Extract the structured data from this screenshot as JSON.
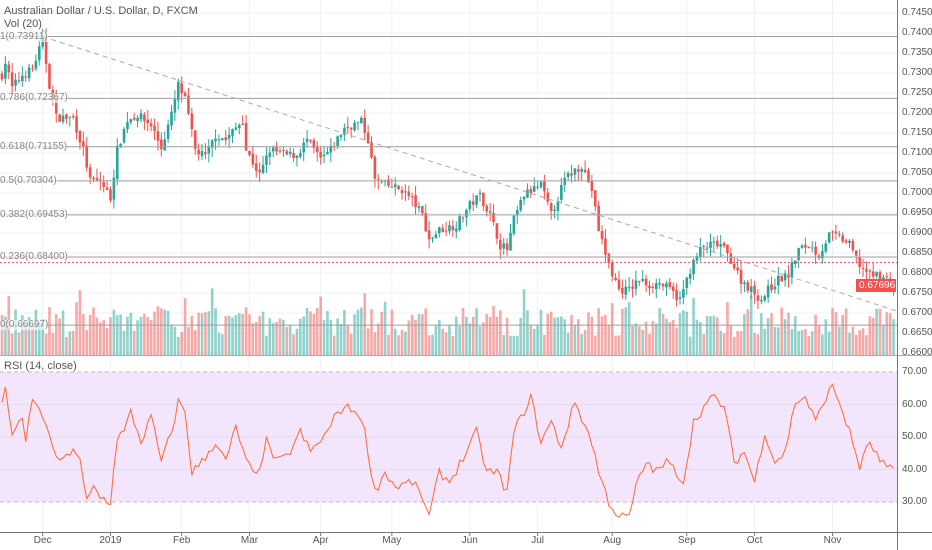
{
  "header": {
    "title": "Australian Dollar / U.S. Dollar, D, FXCM",
    "volume_label": "Vol (20)",
    "rsi_label": "RSI (14, close)"
  },
  "colors": {
    "up": "#26a69a",
    "down": "#ef5350",
    "rsi_line": "#ff7043",
    "rsi_band": "#f3e6fc",
    "fib": "#9e9e9e",
    "grid": "#eef2f6"
  },
  "last_price": "0.67696",
  "fib_levels": [
    {
      "label": "1(0.73911)",
      "price": 0.73911
    },
    {
      "label": "0.786(0.72367)",
      "price": 0.72367
    },
    {
      "label": "0.618(0.71155)",
      "price": 0.71155
    },
    {
      "label": "0.5(0.70304)",
      "price": 0.70304
    },
    {
      "label": "0.382(0.69453)",
      "price": 0.69453
    },
    {
      "label": "0.236(0.68400)",
      "price": 0.684
    },
    {
      "label": "0(0.66697)",
      "price": 0.66697
    }
  ],
  "chart_data": {
    "type": "candlestick",
    "price_axis": {
      "ticks": [
        "0.74500",
        "0.74000",
        "0.73500",
        "0.73000",
        "0.72500",
        "0.72000",
        "0.71500",
        "0.71000",
        "0.70500",
        "0.70000",
        "0.69500",
        "0.69000",
        "0.68500",
        "0.68000",
        "0.67500",
        "0.67000",
        "0.66500",
        "0.66000"
      ],
      "range": [
        0.66,
        0.745
      ]
    },
    "rsi_axis": {
      "ticks": [
        "70.00",
        "60.00",
        "50.00",
        "40.00",
        "30.00"
      ],
      "range": [
        70,
        30
      ]
    },
    "time_axis": [
      "Dec",
      "2019",
      "Feb",
      "Mar",
      "Apr",
      "May",
      "Jun",
      "Jul",
      "Aug",
      "Sep",
      "Oct",
      "Nov"
    ],
    "time_axis_bar_index": [
      12,
      32,
      53,
      73,
      94,
      115,
      138,
      158,
      180,
      202,
      222,
      245
    ],
    "bar_count": 264,
    "close_path": [
      [
        0,
        0.7295
      ],
      [
        1,
        0.7327
      ],
      [
        3,
        0.7263
      ],
      [
        6,
        0.7295
      ],
      [
        9,
        0.731
      ],
      [
        12,
        0.7383
      ],
      [
        14,
        0.727
      ],
      [
        16,
        0.719
      ],
      [
        18,
        0.7188
      ],
      [
        21,
        0.7188
      ],
      [
        24,
        0.7108
      ],
      [
        26,
        0.703
      ],
      [
        29,
        0.703
      ],
      [
        32,
        0.6988
      ],
      [
        34,
        0.7108
      ],
      [
        37,
        0.7183
      ],
      [
        40,
        0.7195
      ],
      [
        44,
        0.717
      ],
      [
        47,
        0.7113
      ],
      [
        50,
        0.7195
      ],
      [
        52,
        0.727
      ],
      [
        54,
        0.7233
      ],
      [
        57,
        0.7108
      ],
      [
        60,
        0.709
      ],
      [
        63,
        0.7145
      ],
      [
        66,
        0.7133
      ],
      [
        71,
        0.7183
      ],
      [
        72,
        0.7108
      ],
      [
        76,
        0.7045
      ],
      [
        79,
        0.7108
      ],
      [
        84,
        0.7095
      ],
      [
        87,
        0.7095
      ],
      [
        90,
        0.7133
      ],
      [
        94,
        0.7083
      ],
      [
        97,
        0.7108
      ],
      [
        101,
        0.7163
      ],
      [
        106,
        0.7178
      ],
      [
        108,
        0.7133
      ],
      [
        110,
        0.7033
      ],
      [
        113,
        0.702
      ],
      [
        118,
        0.7008
      ],
      [
        121,
        0.6983
      ],
      [
        124,
        0.6945
      ],
      [
        126,
        0.6883
      ],
      [
        129,
        0.6908
      ],
      [
        134,
        0.692
      ],
      [
        138,
        0.697
      ],
      [
        141,
        0.6995
      ],
      [
        144,
        0.6945
      ],
      [
        147,
        0.687
      ],
      [
        149,
        0.6858
      ],
      [
        151,
        0.6933
      ],
      [
        154,
        0.6995
      ],
      [
        159,
        0.702
      ],
      [
        162,
        0.6945
      ],
      [
        166,
        0.7033
      ],
      [
        169,
        0.7058
      ],
      [
        171,
        0.707
      ],
      [
        174,
        0.7008
      ],
      [
        176,
        0.6908
      ],
      [
        179,
        0.682
      ],
      [
        182,
        0.6758
      ],
      [
        185,
        0.6758
      ],
      [
        188,
        0.6783
      ],
      [
        191,
        0.677
      ],
      [
        194,
        0.6775
      ],
      [
        197,
        0.6758
      ],
      [
        200,
        0.6733
      ],
      [
        203,
        0.6808
      ],
      [
        206,
        0.6858
      ],
      [
        209,
        0.687
      ],
      [
        212,
        0.687
      ],
      [
        215,
        0.6833
      ],
      [
        218,
        0.6783
      ],
      [
        221,
        0.6758
      ],
      [
        224,
        0.6733
      ],
      [
        226,
        0.6758
      ],
      [
        229,
        0.6783
      ],
      [
        232,
        0.6795
      ],
      [
        235,
        0.6858
      ],
      [
        238,
        0.687
      ],
      [
        241,
        0.6845
      ],
      [
        244,
        0.6895
      ],
      [
        247,
        0.689
      ],
      [
        250,
        0.687
      ],
      [
        253,
        0.682
      ],
      [
        256,
        0.6795
      ],
      [
        259,
        0.6795
      ],
      [
        263,
        0.67696
      ]
    ],
    "rsi_path": [
      [
        0,
        61
      ],
      [
        1,
        64
      ],
      [
        3,
        51.6
      ],
      [
        6,
        54.6
      ],
      [
        7,
        48.5
      ],
      [
        9,
        62.3
      ],
      [
        11,
        57.7
      ],
      [
        13,
        54.6
      ],
      [
        15,
        45.4
      ],
      [
        18,
        42.3
      ],
      [
        21,
        46.9
      ],
      [
        23,
        42.3
      ],
      [
        25,
        30
      ],
      [
        27,
        34.6
      ],
      [
        29,
        31.5
      ],
      [
        32,
        30
      ],
      [
        34,
        50
      ],
      [
        36,
        51.5
      ],
      [
        38,
        57.7
      ],
      [
        41,
        48.5
      ],
      [
        44,
        56.2
      ],
      [
        47,
        42.3
      ],
      [
        50,
        51.5
      ],
      [
        52,
        60.8
      ],
      [
        54,
        57.7
      ],
      [
        56,
        39.2
      ],
      [
        59,
        42.3
      ],
      [
        63,
        48.5
      ],
      [
        66,
        42.3
      ],
      [
        69,
        53.1
      ],
      [
        72,
        42.3
      ],
      [
        75,
        37.7
      ],
      [
        78,
        48.5
      ],
      [
        81,
        42.3
      ],
      [
        84,
        43.8
      ],
      [
        88,
        51.5
      ],
      [
        91,
        45.4
      ],
      [
        96,
        51.5
      ],
      [
        99,
        57.7
      ],
      [
        101,
        59.2
      ],
      [
        105,
        57.7
      ],
      [
        107,
        51.5
      ],
      [
        110,
        33.1
      ],
      [
        113,
        39.2
      ],
      [
        116,
        34.6
      ],
      [
        121,
        36.2
      ],
      [
        124,
        31.5
      ],
      [
        126,
        25.4
      ],
      [
        129,
        39.2
      ],
      [
        132,
        36.2
      ],
      [
        137,
        45.4
      ],
      [
        140,
        51.5
      ],
      [
        143,
        39.2
      ],
      [
        146,
        39.2
      ],
      [
        149,
        33.1
      ],
      [
        151,
        51.5
      ],
      [
        156,
        62.3
      ],
      [
        159,
        48.5
      ],
      [
        162,
        54.6
      ],
      [
        165,
        46.9
      ],
      [
        169,
        60.8
      ],
      [
        174,
        48.5
      ],
      [
        176,
        39.2
      ],
      [
        179,
        30
      ],
      [
        182,
        25.4
      ],
      [
        185,
        25.4
      ],
      [
        187,
        34.6
      ],
      [
        190,
        42.3
      ],
      [
        193,
        39.2
      ],
      [
        196,
        42.3
      ],
      [
        199,
        39.2
      ],
      [
        201,
        36.2
      ],
      [
        204,
        54.6
      ],
      [
        207,
        59.2
      ],
      [
        210,
        62.3
      ],
      [
        213,
        59.2
      ],
      [
        216,
        42.3
      ],
      [
        219,
        45.4
      ],
      [
        222,
        36.2
      ],
      [
        225,
        51.5
      ],
      [
        228,
        42.3
      ],
      [
        231,
        45.4
      ],
      [
        234,
        60.8
      ],
      [
        237,
        62.3
      ],
      [
        240,
        54.6
      ],
      [
        243,
        62.3
      ],
      [
        245,
        65.4
      ],
      [
        247,
        60.8
      ],
      [
        250,
        51.5
      ],
      [
        253,
        40.8
      ],
      [
        256,
        48.5
      ],
      [
        259,
        42.3
      ],
      [
        263,
        39.2
      ]
    ]
  }
}
